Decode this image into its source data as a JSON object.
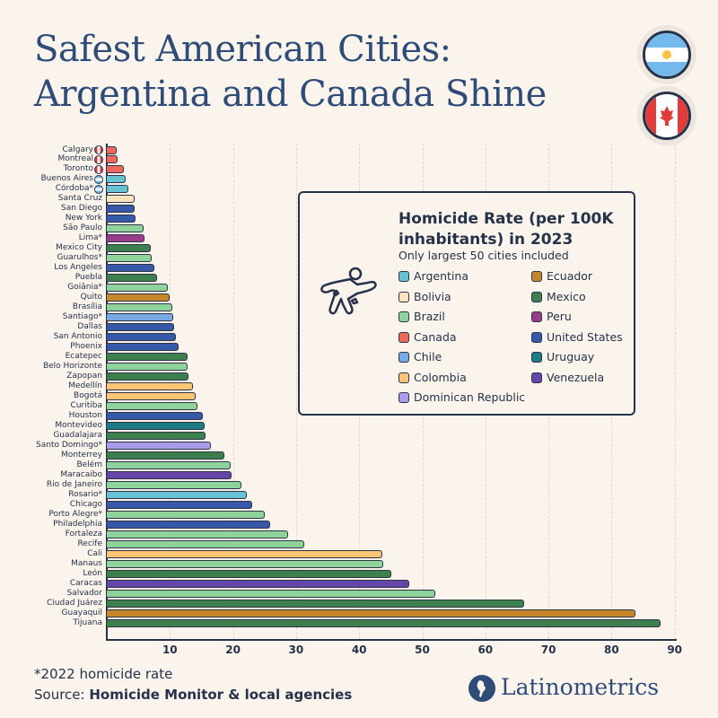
{
  "header": {
    "title_line1": "Safest American Cities:",
    "title_line2": "Argentina and Canada Shine",
    "flags": [
      "argentina-flag",
      "canada-flag"
    ]
  },
  "legend": {
    "title": "Homicide Rate (per 100K inhabitants) in 2023",
    "subtitle": "Only largest 50 cities included",
    "icon": "crime-scene-body-outline-icon",
    "items": [
      {
        "label": "Argentina",
        "color": "#67c3d4"
      },
      {
        "label": "Bolivia",
        "color": "#fbe4bd"
      },
      {
        "label": "Brazil",
        "color": "#8dd39a"
      },
      {
        "label": "Canada",
        "color": "#ef6a5b"
      },
      {
        "label": "Chile",
        "color": "#78a9e2"
      },
      {
        "label": "Colombia",
        "color": "#fdc574"
      },
      {
        "label": "Dominican Republic",
        "color": "#ab9ceb"
      },
      {
        "label": "Ecuador",
        "color": "#c5862c"
      },
      {
        "label": "Mexico",
        "color": "#3e7f4e"
      },
      {
        "label": "Peru",
        "color": "#9a3c8a"
      },
      {
        "label": "United States",
        "color": "#3558a8"
      },
      {
        "label": "Uruguay",
        "color": "#1d7b86"
      },
      {
        "label": "Venezuela",
        "color": "#6446a9"
      }
    ]
  },
  "chart_data": {
    "type": "bar",
    "orientation": "horizontal",
    "title": "Homicide Rate (per 100K inhabitants) in 2023",
    "subtitle": "Only largest 50 cities included",
    "xlim": [
      0,
      90
    ],
    "xticks": [
      10,
      20,
      30,
      40,
      50,
      60,
      70,
      80,
      90
    ],
    "grid": true,
    "legend_position": "right",
    "categories": [
      "Calgary",
      "Montreal",
      "Toronto",
      "Buenos Aires",
      "Córdoba*",
      "Santa Cruz",
      "San Diego",
      "New York",
      "São Paulo",
      "Lima*",
      "Mexico City",
      "Guarulhos*",
      "Los Angeles",
      "Puebla",
      "Goiânia*",
      "Quito",
      "Brasília",
      "Santiago*",
      "Dallas",
      "San Antonio",
      "Phoenix",
      "Ecatepec",
      "Belo Horizonte",
      "Zapopan",
      "Medellín",
      "Bogotá",
      "Curitiba",
      "Houston",
      "Montevideo",
      "Guadalajara",
      "Santo Domingo*",
      "Monterrey",
      "Belém",
      "Maracaibo",
      "Rio de Janeiro",
      "Rosario*",
      "Chicago",
      "Porto Alegre*",
      "Philadelphia",
      "Fortaleza",
      "Recife",
      "Cali",
      "Manaus",
      "León",
      "Caracas",
      "Salvador",
      "Ciudad Juárez",
      "Guayaquil",
      "Tijuana"
    ],
    "countries": [
      "Canada",
      "Canada",
      "Canada",
      "Argentina",
      "Argentina",
      "Bolivia",
      "United States",
      "United States",
      "Brazil",
      "Peru",
      "Mexico",
      "Brazil",
      "United States",
      "Mexico",
      "Brazil",
      "Ecuador",
      "Brazil",
      "Chile",
      "United States",
      "United States",
      "United States",
      "Mexico",
      "Brazil",
      "Mexico",
      "Colombia",
      "Colombia",
      "Brazil",
      "United States",
      "Uruguay",
      "Mexico",
      "Dominican Republic",
      "Mexico",
      "Brazil",
      "Venezuela",
      "Brazil",
      "Argentina",
      "United States",
      "Brazil",
      "United States",
      "Brazil",
      "Brazil",
      "Colombia",
      "Brazil",
      "Mexico",
      "Venezuela",
      "Brazil",
      "Mexico",
      "Ecuador",
      "Mexico"
    ],
    "values": [
      1.6,
      1.7,
      2.7,
      3.0,
      3.4,
      4.4,
      4.4,
      4.5,
      5.9,
      6.0,
      7.0,
      7.1,
      7.6,
      7.9,
      9.7,
      9.9,
      10.4,
      10.5,
      10.6,
      10.9,
      11.4,
      12.8,
      12.8,
      12.9,
      13.6,
      14.1,
      14.3,
      15.2,
      15.5,
      15.7,
      16.5,
      18.7,
      19.6,
      19.8,
      21.4,
      22.2,
      23.1,
      25.0,
      25.9,
      28.7,
      31.3,
      43.6,
      43.8,
      45.1,
      47.9,
      52.0,
      66.1,
      83.8,
      87.8
    ]
  },
  "footer": {
    "note": "*2022 homicide rate",
    "source_prefix": "Source: ",
    "source": "Homicide Monitor & local agencies",
    "brand": "Latinometrics"
  }
}
